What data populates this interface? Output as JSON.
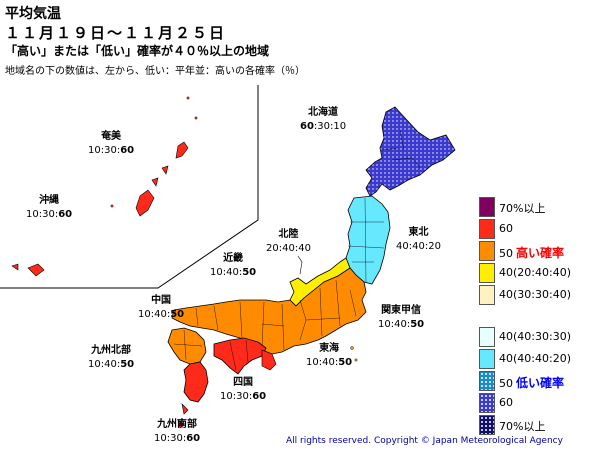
{
  "title": {
    "line1": "平均気温",
    "line2": "１１月１９日～１１月２５日",
    "line3": "「高い」または「低い」確率が４０％以上の地域",
    "line4": "地域名の下の数値は、左から、低い：平年並：高いの各確率（％）"
  },
  "regions": [
    {
      "id": "hokkaido",
      "name": "北海道",
      "low": "60",
      "normal": "30",
      "high": "10",
      "highlight": "low"
    },
    {
      "id": "tohoku",
      "name": "東北",
      "low": "40",
      "normal": "40",
      "high": "20",
      "highlight": "none"
    },
    {
      "id": "hokuriku",
      "name": "北陸",
      "low": "20",
      "normal": "40",
      "high": "40",
      "highlight": "none"
    },
    {
      "id": "kanto",
      "name": "関東甲信",
      "low": "10",
      "normal": "40",
      "high": "50",
      "highlight": "high"
    },
    {
      "id": "kinki",
      "name": "近畿",
      "low": "10",
      "normal": "40",
      "high": "50",
      "highlight": "high"
    },
    {
      "id": "tokai",
      "name": "東海",
      "low": "10",
      "normal": "40",
      "high": "50",
      "highlight": "high"
    },
    {
      "id": "chugoku",
      "name": "中国",
      "low": "10",
      "normal": "40",
      "high": "50",
      "highlight": "high"
    },
    {
      "id": "shikoku",
      "name": "四国",
      "low": "10",
      "normal": "30",
      "high": "60",
      "highlight": "high"
    },
    {
      "id": "kyushu_north",
      "name": "九州北部",
      "low": "10",
      "normal": "40",
      "high": "50",
      "highlight": "high"
    },
    {
      "id": "kyushu_south",
      "name": "九州南部",
      "low": "10",
      "normal": "30",
      "high": "60",
      "highlight": "high"
    },
    {
      "id": "amami",
      "name": "奄美",
      "low": "10",
      "normal": "30",
      "high": "60",
      "highlight": "high"
    },
    {
      "id": "okinawa",
      "name": "沖縄",
      "low": "10",
      "normal": "30",
      "high": "60",
      "highlight": "high"
    }
  ],
  "legend": [
    {
      "label": "70%以上",
      "tag": "",
      "tag_color": "",
      "color": "#800060",
      "pattern": "none"
    },
    {
      "label": "60",
      "tag": "",
      "tag_color": "",
      "color": "#ff2a1a",
      "pattern": "none"
    },
    {
      "label": "50",
      "tag": "高い確率",
      "tag_color": "#ff0000",
      "color": "#ff8c00",
      "pattern": "none"
    },
    {
      "label": "40(20:40:40)",
      "tag": "",
      "tag_color": "",
      "color": "#ffee00",
      "pattern": "none"
    },
    {
      "label": "40(30:30:40)",
      "tag": "",
      "tag_color": "",
      "color": "#fff2c0",
      "pattern": "none"
    },
    {
      "label": "40(40:30:30)",
      "tag": "",
      "tag_color": "",
      "color": "#e8ffff",
      "pattern": "none"
    },
    {
      "label": "40(40:40:20)",
      "tag": "",
      "tag_color": "",
      "color": "#66e8ff",
      "pattern": "none"
    },
    {
      "label": "50",
      "tag": "低い確率",
      "tag_color": "#0000ff",
      "color": "#1a8cc8",
      "pattern": "dots"
    },
    {
      "label": "60",
      "tag": "",
      "tag_color": "",
      "color": "#3a3ad0",
      "pattern": "dots"
    },
    {
      "label": "70%以上",
      "tag": "",
      "tag_color": "",
      "color": "#10106a",
      "pattern": "dots"
    }
  ],
  "colors": {
    "hokkaido": "#3a3ad0",
    "tohoku": "#66e8ff",
    "hokuriku": "#ffee00",
    "high50": "#ff8c00",
    "high60": "#ff2a1a",
    "border": "#000000"
  },
  "copyright": "All rights reserved. Copyright © Japan Meteorological Agency"
}
